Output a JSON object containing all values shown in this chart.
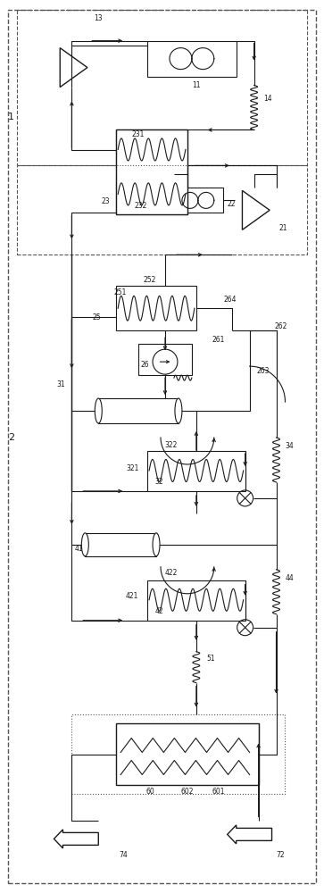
{
  "bg_color": "#ffffff",
  "line_color": "#1a1a1a",
  "fig_width": 3.63,
  "fig_height": 10.0,
  "dpi": 100
}
